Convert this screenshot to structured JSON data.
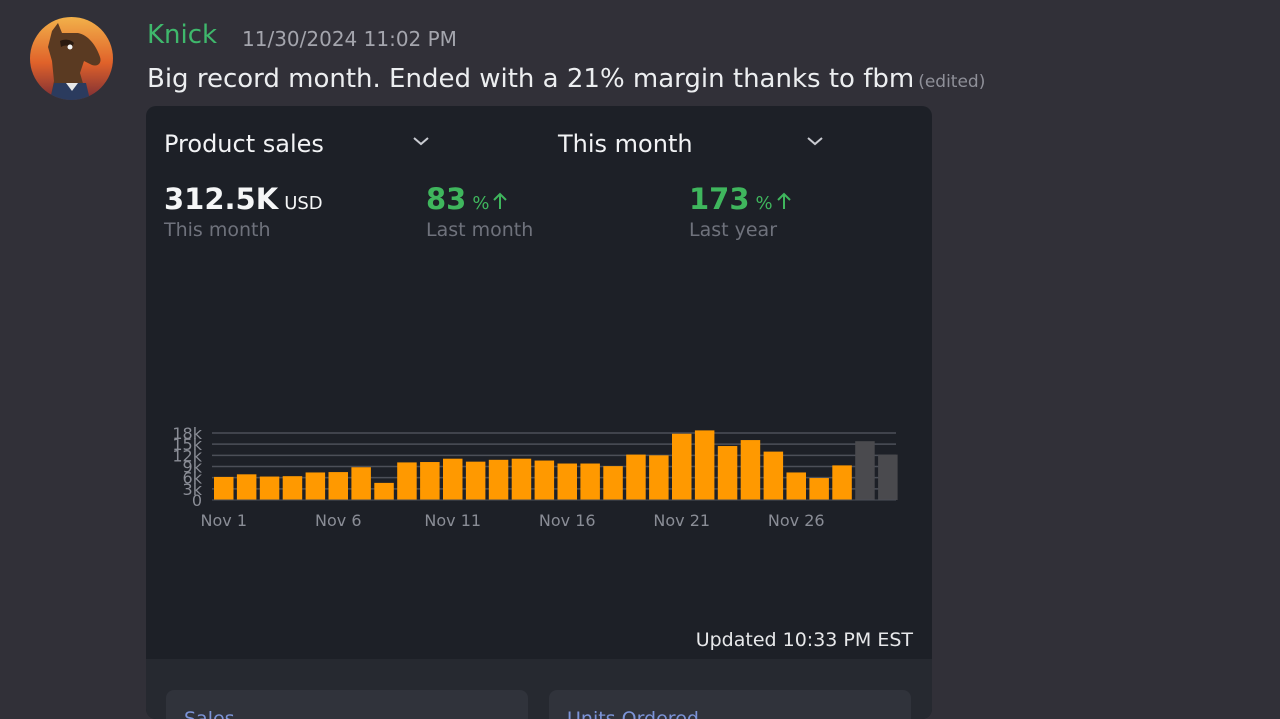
{
  "message": {
    "author": "Knick",
    "timestamp": "11/30/2024 11:02 PM",
    "text": "Big record month. Ended with a 21% margin thanks to fbm",
    "edited_label": "(edited)",
    "author_color": "#3fb86c"
  },
  "card": {
    "metric_dropdown": "Product sales",
    "period_dropdown": "This month",
    "stats": [
      {
        "value": "312.5K",
        "unit": "USD",
        "label": "This month"
      },
      {
        "value": "83",
        "unit": "%",
        "label": "Last month",
        "trend": "up"
      },
      {
        "value": "173",
        "unit": "%",
        "label": "Last year",
        "trend": "up"
      }
    ],
    "updated": "Updated 10:33 PM EST",
    "tiles": [
      "Sales",
      "Units Ordered"
    ]
  },
  "chart_data": {
    "type": "bar",
    "x_tick_labels": [
      "Nov 1",
      "Nov 6",
      "Nov 11",
      "Nov 16",
      "Nov 21",
      "Nov 26"
    ],
    "y_tick_labels": [
      "0",
      "3k",
      "6k",
      "9k",
      "12k",
      "15k",
      "18k"
    ],
    "ylim": [
      0,
      18000
    ],
    "grid": true,
    "categories": [
      "Nov 1",
      "Nov 2",
      "Nov 3",
      "Nov 4",
      "Nov 5",
      "Nov 6",
      "Nov 7",
      "Nov 8",
      "Nov 9",
      "Nov 10",
      "Nov 11",
      "Nov 12",
      "Nov 13",
      "Nov 14",
      "Nov 15",
      "Nov 16",
      "Nov 17",
      "Nov 18",
      "Nov 19",
      "Nov 20",
      "Nov 21",
      "Nov 22",
      "Nov 23",
      "Nov 24",
      "Nov 25",
      "Nov 26",
      "Nov 27",
      "Nov 28",
      "Nov 29",
      "Nov 30"
    ],
    "values": [
      6200,
      6900,
      6300,
      6400,
      7400,
      7500,
      8800,
      4600,
      10100,
      10200,
      11100,
      10300,
      10800,
      11100,
      10600,
      9800,
      9800,
      9100,
      12200,
      12000,
      17800,
      18700,
      14500,
      16100,
      13000,
      7400,
      5900,
      9300,
      15800,
      12200
    ],
    "colors": [
      "#ff9900",
      "#ff9900",
      "#ff9900",
      "#ff9900",
      "#ff9900",
      "#ff9900",
      "#ff9900",
      "#ff9900",
      "#ff9900",
      "#ff9900",
      "#ff9900",
      "#ff9900",
      "#ff9900",
      "#ff9900",
      "#ff9900",
      "#ff9900",
      "#ff9900",
      "#ff9900",
      "#ff9900",
      "#ff9900",
      "#ff9900",
      "#ff9900",
      "#ff9900",
      "#ff9900",
      "#ff9900",
      "#ff9900",
      "#ff9900",
      "#ff9900",
      "#4a4a4e",
      "#4a4a4e"
    ],
    "bar_color": "#ff9900",
    "projected_color": "#4a4a4e"
  }
}
